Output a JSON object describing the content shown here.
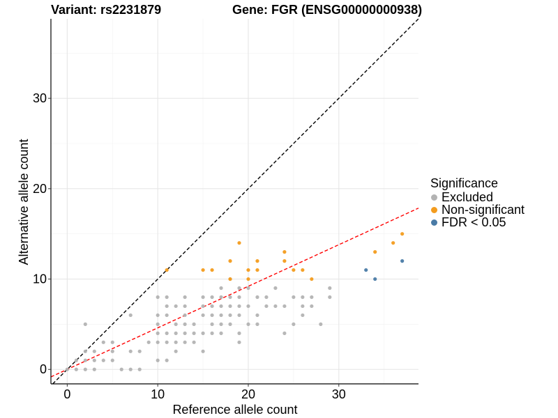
{
  "title_left": "Variant: rs2231879",
  "title_right": "Gene: FGR (ENSG00000000938)",
  "legend": {
    "title": "Significance",
    "items": [
      {
        "label": "Excluded",
        "color": "#b3b3b3"
      },
      {
        "label": "Non-significant",
        "color": "#f39c1e"
      },
      {
        "label": "FDR < 0.05",
        "color": "#4a7ba6"
      }
    ]
  },
  "chart_data": {
    "type": "scatter",
    "xlabel": "Reference allele count",
    "ylabel": "Alternative allele count",
    "xlim": [
      -1.8,
      38.8
    ],
    "ylim": [
      -1.6,
      38.8
    ],
    "xticks": [
      0,
      10,
      20,
      30
    ],
    "yticks": [
      0,
      10,
      20,
      30
    ],
    "grid": true,
    "legend_position": "right",
    "reference_lines": [
      {
        "name": "y = x",
        "slope": 1,
        "intercept": 0,
        "color": "#000000",
        "style": "dashed"
      },
      {
        "name": "fit",
        "slope": 0.46,
        "intercept": 0.0,
        "color": "#ff0000",
        "style": "dashed"
      }
    ],
    "series": [
      {
        "name": "Excluded",
        "color": "#b3b3b3",
        "points": [
          [
            0,
            0
          ],
          [
            1,
            0
          ],
          [
            1,
            1
          ],
          [
            2,
            0
          ],
          [
            2,
            1
          ],
          [
            2,
            2
          ],
          [
            2,
            5
          ],
          [
            3,
            0
          ],
          [
            3,
            1
          ],
          [
            3,
            2
          ],
          [
            4,
            1
          ],
          [
            4,
            3
          ],
          [
            5,
            1
          ],
          [
            5,
            2
          ],
          [
            5,
            3
          ],
          [
            6,
            0
          ],
          [
            7,
            0
          ],
          [
            7,
            2
          ],
          [
            7,
            6
          ],
          [
            8,
            0
          ],
          [
            8,
            2
          ],
          [
            9,
            3
          ],
          [
            10,
            1
          ],
          [
            10,
            3
          ],
          [
            10,
            4
          ],
          [
            10,
            5
          ],
          [
            10,
            6
          ],
          [
            10,
            8
          ],
          [
            11,
            1
          ],
          [
            11,
            3
          ],
          [
            11,
            4
          ],
          [
            11,
            6
          ],
          [
            11,
            7
          ],
          [
            11,
            8
          ],
          [
            12,
            2
          ],
          [
            12,
            3
          ],
          [
            12,
            4
          ],
          [
            12,
            5
          ],
          [
            12,
            7
          ],
          [
            13,
            3
          ],
          [
            13,
            4
          ],
          [
            13,
            5
          ],
          [
            13,
            6
          ],
          [
            13,
            7
          ],
          [
            13,
            8
          ],
          [
            14,
            3
          ],
          [
            14,
            4
          ],
          [
            14,
            5
          ],
          [
            15,
            2
          ],
          [
            15,
            4
          ],
          [
            15,
            6
          ],
          [
            15,
            7
          ],
          [
            15,
            8
          ],
          [
            16,
            4
          ],
          [
            16,
            5
          ],
          [
            16,
            6
          ],
          [
            16,
            7
          ],
          [
            16,
            8
          ],
          [
            17,
            4
          ],
          [
            17,
            5
          ],
          [
            17,
            6
          ],
          [
            17,
            7
          ],
          [
            17,
            8
          ],
          [
            17,
            9
          ],
          [
            18,
            5
          ],
          [
            18,
            6
          ],
          [
            18,
            7
          ],
          [
            18,
            8
          ],
          [
            18,
            10
          ],
          [
            19,
            3
          ],
          [
            19,
            4
          ],
          [
            19,
            6
          ],
          [
            19,
            7
          ],
          [
            19,
            8
          ],
          [
            19,
            9
          ],
          [
            20,
            5
          ],
          [
            20,
            7
          ],
          [
            20,
            9
          ],
          [
            21,
            5
          ],
          [
            21,
            6
          ],
          [
            21,
            8
          ],
          [
            22,
            7
          ],
          [
            22,
            8
          ],
          [
            23,
            7
          ],
          [
            23,
            9
          ],
          [
            24,
            4
          ],
          [
            24,
            7
          ],
          [
            25,
            5
          ],
          [
            25,
            8
          ],
          [
            26,
            6
          ],
          [
            26,
            7
          ],
          [
            26,
            8
          ],
          [
            27,
            7
          ],
          [
            27,
            8
          ],
          [
            28,
            5
          ],
          [
            29,
            8
          ],
          [
            29,
            9
          ]
        ]
      },
      {
        "name": "Non-significant",
        "color": "#f39c1e",
        "points": [
          [
            11,
            11
          ],
          [
            15,
            11
          ],
          [
            16,
            11
          ],
          [
            18,
            10
          ],
          [
            18,
            12
          ],
          [
            19,
            14
          ],
          [
            20,
            10
          ],
          [
            20,
            11
          ],
          [
            21,
            11
          ],
          [
            21,
            12
          ],
          [
            24,
            12
          ],
          [
            24,
            13
          ],
          [
            25,
            11
          ],
          [
            26,
            11
          ],
          [
            27,
            10
          ],
          [
            34,
            13
          ],
          [
            36,
            14
          ],
          [
            37,
            15
          ]
        ]
      },
      {
        "name": "FDR < 0.05",
        "color": "#4a7ba6",
        "points": [
          [
            33,
            11
          ],
          [
            34,
            10
          ],
          [
            37,
            12
          ]
        ]
      }
    ]
  }
}
